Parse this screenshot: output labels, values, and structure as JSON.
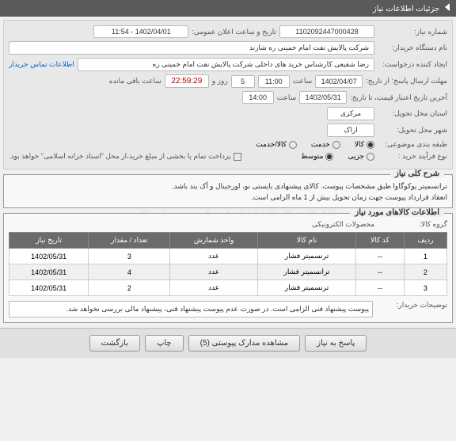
{
  "header": {
    "title": "جزئیات اطلاعات نیاز"
  },
  "fields": {
    "need_no_label": "شماره نیاز:",
    "need_no": "1102092447000428",
    "announce_label": "تاریخ و ساعت اعلان عمومی:",
    "announce_val": "1402/04/01 - 11:54",
    "buyer_org_label": "نام دستگاه خریدار:",
    "buyer_org": "شرکت پالایش نفت امام خمینی ره شازند",
    "creator_label": "ایجاد کننده درخواست:",
    "creator": "رضا شفیعی کارشناس خرید های داخلی شرکت پالایش نفت امام خمینی ره",
    "contact_link": "اطلاعات تماس خریدار",
    "deadline_label": "مهلت ارسال پاسخ: از تاریخ:",
    "deadline_date": "1402/04/07",
    "time_lbl": "ساعت",
    "deadline_time": "11:00",
    "days_lbl": "روز و",
    "days_val": "5",
    "remain_lbl": "ساعت باقی مانده",
    "timer": "22:59:29",
    "valid_label": "آخرین تاریخ اعتبار قیمت، تا تاریخ:",
    "valid_date": "1402/05/31",
    "valid_time": "14:00",
    "need_loc_label": "استان محل تحویل:",
    "need_loc": "مرکزی",
    "city_label": "شهر محل تحویل:",
    "city": "اراک",
    "class_label": "طبقه بندی موضوعی:",
    "buy_type_label": "نوع فرآیند خرید :",
    "pay_note": "پرداخت تمام یا بخشی از مبلغ خرید،از محل \"اسناد خزانه اسلامی\" خواهد بود."
  },
  "class_opts": [
    {
      "label": "کالا",
      "selected": true
    },
    {
      "label": "خدمت",
      "selected": false
    },
    {
      "label": "کالا/خدمت",
      "selected": false
    }
  ],
  "buy_opts": [
    {
      "label": "جزیی",
      "selected": false
    },
    {
      "label": "متوسط",
      "selected": true
    }
  ],
  "sec1": {
    "title": "شرح کلی نیاز",
    "text1": "ترانسمیتر یوکوگاوا طبق مشخصات پیوست. کالای پیشنهادی بایستی نو، اورجینال و آک بند باشد.",
    "text2": "انعقاد قرارداد پیوست جهت زمان تحویل بیش از 1 ماه الزامی است."
  },
  "sec2": {
    "title": "اطلاعات کالاهای مورد نیاز",
    "group_label": "گروه کالا:",
    "group_val": "محصولات الکترونیکی"
  },
  "table": {
    "cols": [
      "ردیف",
      "کد کالا",
      "نام کالا",
      "واحد شمارش",
      "تعداد / مقدار",
      "تاریخ نیاز"
    ],
    "rows": [
      [
        "1",
        "--",
        "ترنسمیتر فشار",
        "عدد",
        "3",
        "1402/05/31"
      ],
      [
        "2",
        "--",
        "ترانسمیتر فشار",
        "عدد",
        "4",
        "1402/05/31"
      ],
      [
        "3",
        "--",
        "ترنسمیتر فشار",
        "عدد",
        "2",
        "1402/05/31"
      ]
    ]
  },
  "buyer_note_label": "توضیحات خریدار:",
  "buyer_note": "پیوست پیشنهاد فنی الزامی است. در صورت عدم پیوست پیشنهاد فنی، پیشنهاد مالی بررسی نخواهد شد.",
  "buttons": {
    "b1": "پاسخ به نیاز",
    "b2": "مشاهده مدارک پیوستی (5)",
    "b3": "چاپ",
    "b4": "بازگشت"
  },
  "watermark": "۰۹۱۰۸۸۳۴۹۶۴",
  "colors": {
    "header_bg": "#5a5a5a",
    "th_bg": "#6b6b6b",
    "link": "#0066cc",
    "timer": "#b00000"
  }
}
